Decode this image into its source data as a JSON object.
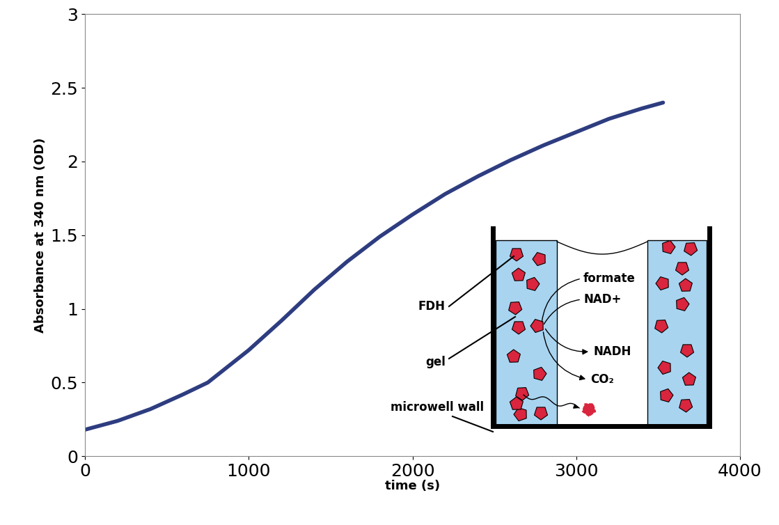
{
  "chart_data": {
    "type": "line",
    "xlabel": "time (s)",
    "ylabel": "Absorbance at 340 nm (OD)",
    "x": [
      0,
      200,
      400,
      600,
      750,
      1000,
      1200,
      1400,
      1600,
      1800,
      2000,
      2200,
      2400,
      2600,
      2800,
      3000,
      3200,
      3400,
      3530
    ],
    "values": [
      0.18,
      0.24,
      0.32,
      0.42,
      0.5,
      0.72,
      0.92,
      1.13,
      1.32,
      1.49,
      1.64,
      1.78,
      1.9,
      2.01,
      2.11,
      2.2,
      2.29,
      2.36,
      2.4
    ],
    "color": "#2e3d80",
    "xlim": [
      0,
      4000
    ],
    "xticks": [
      0,
      1000,
      2000,
      3000,
      4000
    ],
    "ylim": [
      0,
      3
    ],
    "yticks": [
      0,
      0.5,
      1,
      1.5,
      2,
      2.5,
      3
    ],
    "grid": false,
    "annotations": {
      "fdh": "FDH",
      "gel": "gel",
      "wall": "microwell wall",
      "formate": "formate",
      "nad": "NAD+",
      "nadh": "NADH",
      "co2": "CO₂"
    }
  }
}
